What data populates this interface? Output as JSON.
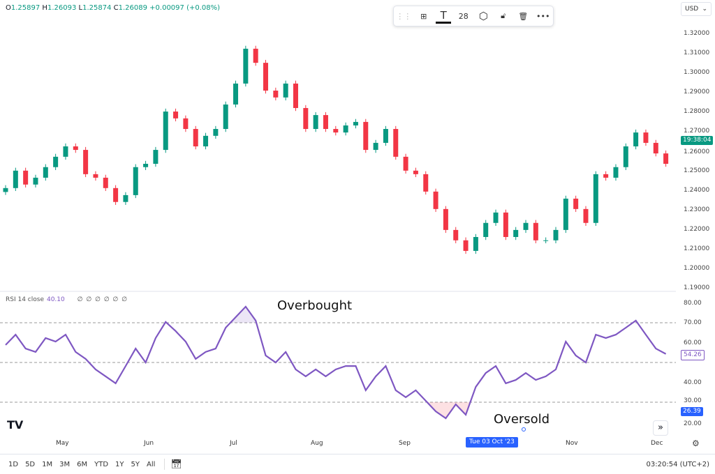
{
  "ohlc": {
    "o": "O",
    "o_val": "1.25897",
    "h": "H",
    "h_val": "1.26093",
    "l": "L",
    "l_val": "1.25874",
    "c": "C",
    "c_val": "1.26089",
    "change": "+0.00097 (+0.08%)"
  },
  "toolbar": {
    "items": [
      "drag-handle-icon",
      "add-object-icon",
      "text-icon",
      "28",
      "settings-hexagon-icon",
      "unlock-icon",
      "trash-icon",
      "more-icon"
    ],
    "font_size": "28"
  },
  "currency": "USD",
  "price_axis": {
    "labels": [
      "1.32000",
      "1.31000",
      "1.30000",
      "1.29000",
      "1.28000",
      "1.27000",
      "1.26000",
      "1.25000",
      "1.24000",
      "1.23000",
      "1.22000",
      "1.21000",
      "1.20000",
      "1.19000"
    ],
    "countdown": "19:38:04"
  },
  "rsi": {
    "label": "RSI 14 close",
    "value": "40.10",
    "flags": "∅ ∅ ∅ ∅ ∅ ∅",
    "axis": [
      "80.00",
      "70.00",
      "60.00",
      "40.00",
      "30.00",
      "20.00"
    ],
    "current": "54.26",
    "cursor_value": "26.39",
    "overbought": "Overbought",
    "oversold": "Oversold"
  },
  "time_axis": {
    "months": [
      "May",
      "Jun",
      "Jul",
      "Aug",
      "Sep",
      "Nov",
      "Dec"
    ],
    "cursor": "Tue 03 Oct '23"
  },
  "bottom": {
    "ranges": [
      "1D",
      "5D",
      "1M",
      "3M",
      "6M",
      "YTD",
      "1Y",
      "5Y",
      "All"
    ],
    "clock": "03:20:54 (UTC+2)"
  },
  "colors": {
    "up": "#089981",
    "down": "#f23645",
    "rsi": "#7e57c2",
    "accent": "#2962ff"
  },
  "chart_data": [
    {
      "type": "candlestick",
      "ylim": [
        1.19,
        1.32
      ],
      "closes": [
        1.241,
        1.2499,
        1.2428,
        1.2463,
        1.2517,
        1.257,
        1.2623,
        1.2605,
        1.2481,
        1.2463,
        1.241,
        1.2339,
        1.2374,
        1.2517,
        1.2534,
        1.2605,
        1.2801,
        1.2766,
        1.2712,
        1.2623,
        1.2677,
        1.2712,
        1.2837,
        1.2944,
        1.3122,
        1.305,
        1.2908,
        1.2873,
        1.2944,
        1.2819,
        1.2712,
        1.2783,
        1.2712,
        1.2694,
        1.273,
        1.2748,
        1.2605,
        1.2641,
        1.2712,
        1.257,
        1.2499,
        1.2481,
        1.2392,
        1.2303,
        1.2196,
        1.2143,
        1.2089,
        1.216,
        1.2232,
        1.2285,
        1.216,
        1.2196,
        1.2232,
        1.2143,
        1.2143,
        1.2196,
        1.2356,
        1.2303,
        1.2232,
        1.2481,
        1.2463,
        1.2517,
        1.2623,
        1.2694,
        1.2641,
        1.2587,
        1.2534
      ]
    },
    {
      "type": "line",
      "ylim": [
        15,
        85
      ],
      "levels": [
        70,
        50,
        30
      ],
      "values": [
        58.8,
        64.0,
        57.0,
        55.3,
        62.3,
        60.5,
        64.0,
        55.3,
        51.8,
        46.5,
        43.0,
        39.5,
        48.2,
        57.0,
        50.0,
        62.3,
        70.4,
        65.8,
        60.5,
        51.8,
        55.3,
        57.0,
        67.5,
        72.8,
        78.1,
        71.1,
        53.5,
        50.0,
        55.3,
        46.5,
        43.0,
        46.5,
        43.0,
        46.5,
        48.2,
        48.2,
        36.0,
        43.0,
        48.2,
        36.0,
        32.5,
        36.0,
        30.7,
        25.4,
        21.9,
        28.9,
        23.7,
        37.7,
        44.7,
        48.2,
        39.5,
        41.2,
        44.7,
        41.2,
        43.0,
        46.5,
        60.5,
        53.5,
        50.0,
        64.0,
        62.3,
        64.0,
        67.5,
        71.1,
        64.0,
        57.0,
        54.3
      ]
    }
  ]
}
